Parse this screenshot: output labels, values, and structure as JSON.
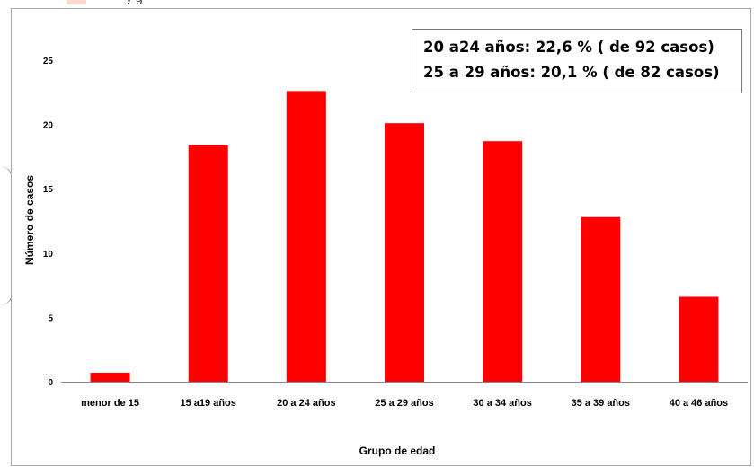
{
  "header": {
    "partial_text": "y                     g"
  },
  "chart_data": {
    "type": "bar",
    "categories": [
      "menor de 15",
      "15 a19 años",
      "20 a 24 años",
      "25 a 29 años",
      "30 a 34 años",
      "35 a 39 años",
      "40 a 46 años"
    ],
    "values": [
      0.7,
      18.4,
      22.6,
      20.1,
      18.7,
      12.8,
      6.6
    ],
    "xlabel": "Grupo de edad",
    "ylabel": "Número de casos",
    "ylim": [
      0,
      25
    ],
    "yticks": [
      "0",
      "5",
      "10",
      "15",
      "20",
      "25"
    ],
    "grid": false,
    "bar_color": "#ff0000",
    "annotations": [
      "20 a24 años: 22,6 % ( de 92 casos)",
      "25 a 29 años: 20,1 % ( de 82 casos)"
    ]
  }
}
